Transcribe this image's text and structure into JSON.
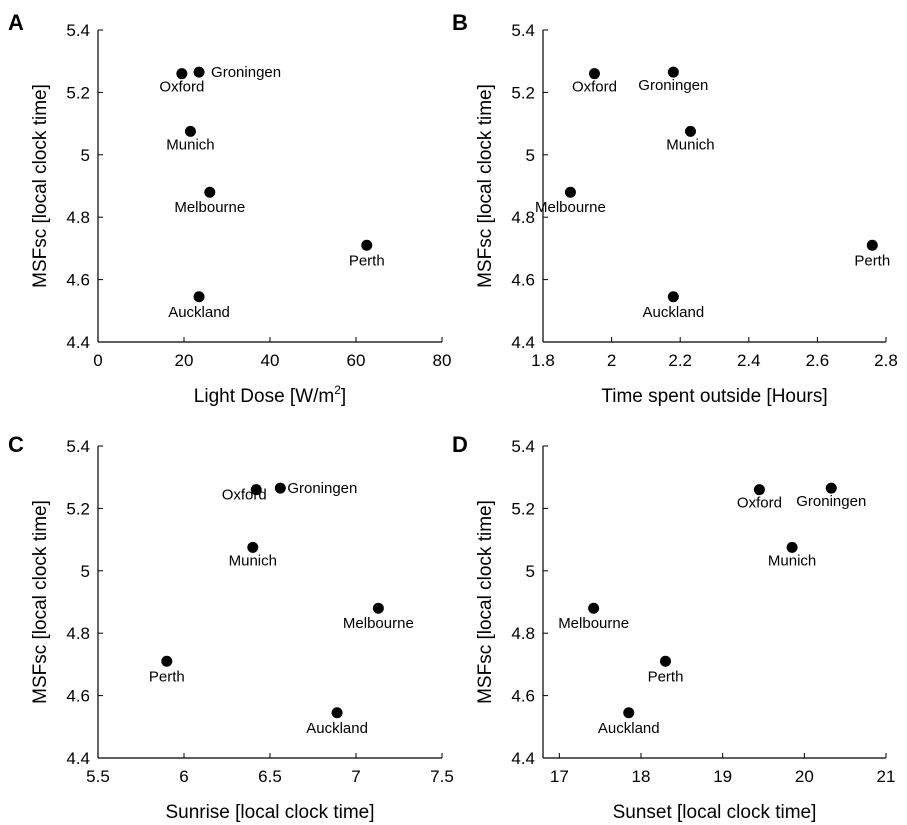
{
  "chart_data": [
    {
      "type": "scatter",
      "panel_label": "A",
      "xlabel": "Light Dose [W/m",
      "xlabel_sup": "2",
      "xlabel_end": "]",
      "ylabel": "MSFsc [local clock time]",
      "xlim": [
        0,
        80
      ],
      "ylim": [
        4.4,
        5.4
      ],
      "xticks": [
        "0",
        "20",
        "40",
        "60",
        "80"
      ],
      "yticks": [
        "4.4",
        "4.6",
        "4.8",
        "5",
        "5.2",
        "5.4"
      ],
      "points": [
        {
          "label": "Oxford",
          "x": 19.5,
          "y": 5.26
        },
        {
          "label": "Groningen",
          "x": 23.5,
          "y": 5.265
        },
        {
          "label": "Munich",
          "x": 21.5,
          "y": 5.075
        },
        {
          "label": "Melbourne",
          "x": 26,
          "y": 4.88
        },
        {
          "label": "Perth",
          "x": 62.5,
          "y": 4.71
        },
        {
          "label": "Auckland",
          "x": 23.5,
          "y": 4.545
        }
      ]
    },
    {
      "type": "scatter",
      "panel_label": "B",
      "xlabel": "Time spent outside [Hours]",
      "ylabel": "MSFsc [local clock time]",
      "xlim": [
        1.8,
        2.8
      ],
      "ylim": [
        4.4,
        5.4
      ],
      "xticks": [
        "1.8",
        "2",
        "2.2",
        "2.4",
        "2.6",
        "2.8"
      ],
      "yticks": [
        "4.4",
        "4.6",
        "4.8",
        "5",
        "5.2",
        "5.4"
      ],
      "points": [
        {
          "label": "Oxford",
          "x": 1.95,
          "y": 5.26
        },
        {
          "label": "Groningen",
          "x": 2.18,
          "y": 5.265
        },
        {
          "label": "Munich",
          "x": 2.23,
          "y": 5.075
        },
        {
          "label": "Melbourne",
          "x": 1.88,
          "y": 4.88
        },
        {
          "label": "Perth",
          "x": 2.76,
          "y": 4.71
        },
        {
          "label": "Auckland",
          "x": 2.18,
          "y": 4.545
        }
      ]
    },
    {
      "type": "scatter",
      "panel_label": "C",
      "xlabel": "Sunrise [local clock time]",
      "ylabel": "MSFsc [local clock time]",
      "xlim": [
        5.5,
        7.5
      ],
      "ylim": [
        4.4,
        5.4
      ],
      "xticks": [
        "5.5",
        "6",
        "6.5",
        "7",
        "7.5"
      ],
      "yticks": [
        "4.4",
        "4.6",
        "4.8",
        "5",
        "5.2",
        "5.4"
      ],
      "points": [
        {
          "label": "Oxford",
          "x": 6.42,
          "y": 5.26
        },
        {
          "label": "Groningen",
          "x": 6.56,
          "y": 5.265
        },
        {
          "label": "Munich",
          "x": 6.4,
          "y": 5.075
        },
        {
          "label": "Melbourne",
          "x": 7.13,
          "y": 4.88
        },
        {
          "label": "Perth",
          "x": 5.9,
          "y": 4.71
        },
        {
          "label": "Auckland",
          "x": 6.89,
          "y": 4.545
        }
      ]
    },
    {
      "type": "scatter",
      "panel_label": "D",
      "xlabel": "Sunset [local clock time]",
      "ylabel": "MSFsc [local clock time]",
      "xlim": [
        16.8,
        21
      ],
      "ylim": [
        4.4,
        5.4
      ],
      "xticks": [
        "17",
        "18",
        "19",
        "20",
        "21"
      ],
      "yticks": [
        "4.4",
        "4.6",
        "4.8",
        "5",
        "5.2",
        "5.4"
      ],
      "points": [
        {
          "label": "Oxford",
          "x": 19.45,
          "y": 5.26
        },
        {
          "label": "Groningen",
          "x": 20.33,
          "y": 5.265
        },
        {
          "label": "Munich",
          "x": 19.85,
          "y": 5.075
        },
        {
          "label": "Melbourne",
          "x": 17.42,
          "y": 4.88
        },
        {
          "label": "Perth",
          "x": 18.3,
          "y": 4.71
        },
        {
          "label": "Auckland",
          "x": 17.85,
          "y": 4.545
        }
      ]
    }
  ]
}
